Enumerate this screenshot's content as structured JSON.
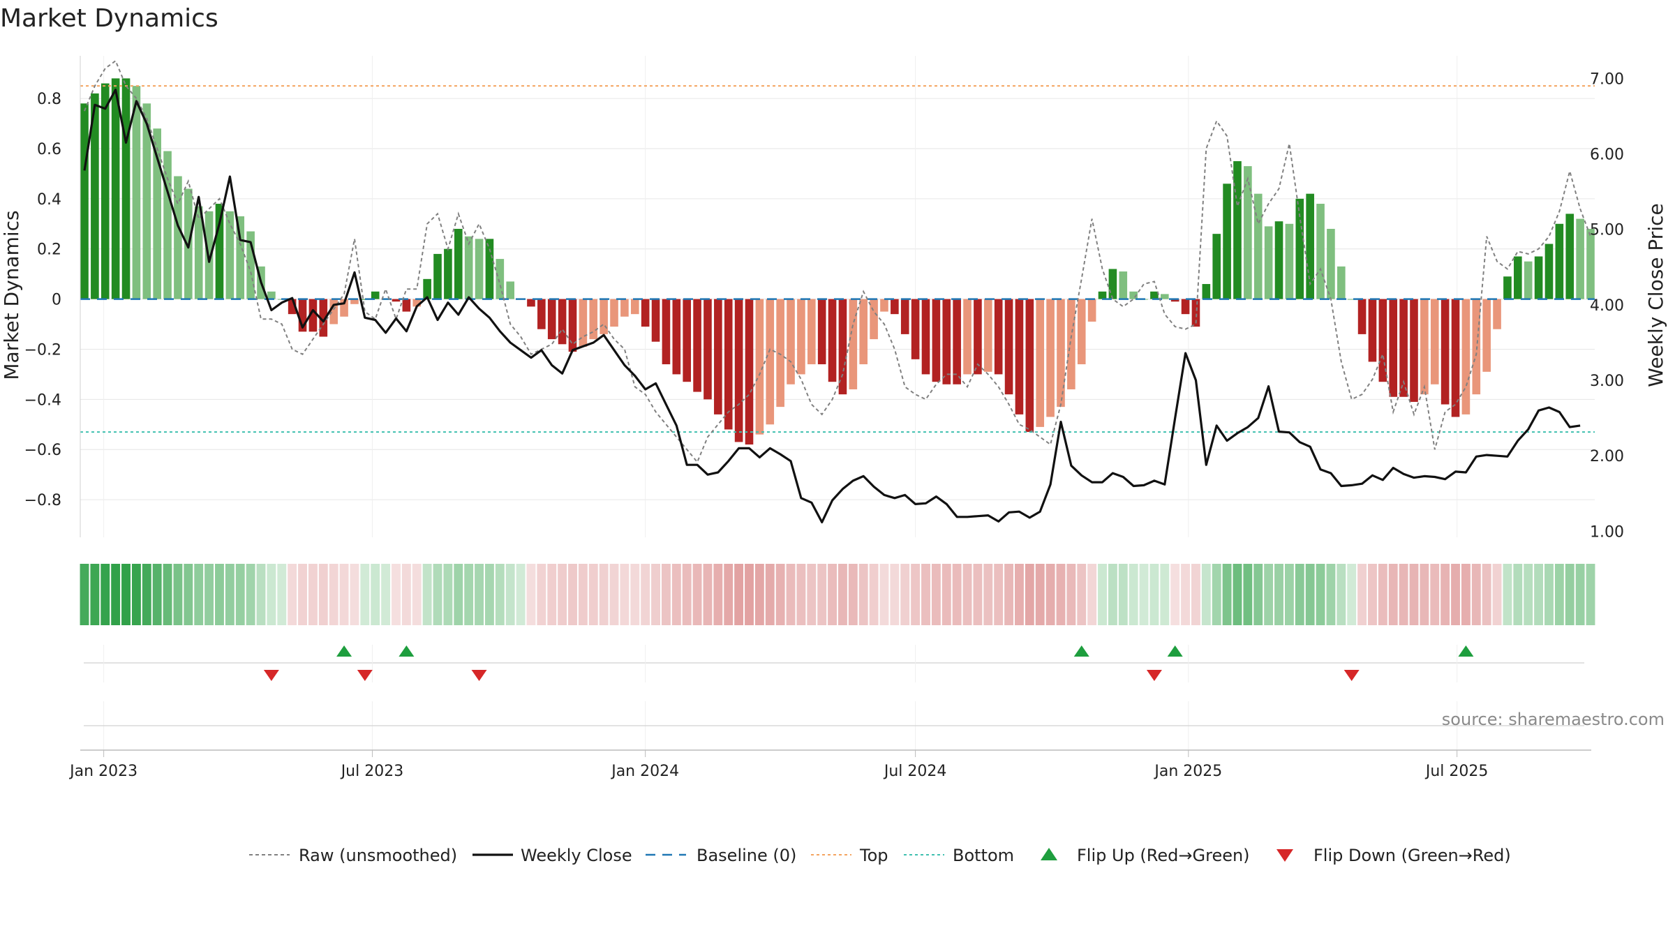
{
  "chart_data": {
    "type": "bar",
    "title": "Market Dynamics",
    "ylabel": "Market Dynamics",
    "y2label": "Weekly Close Price",
    "ylim": [
      -0.95,
      0.97
    ],
    "y2lim": [
      0.92,
      7.3
    ],
    "y_ticks": [
      0.8,
      0.6,
      0.4,
      0.2,
      0,
      -0.2,
      -0.4,
      -0.6,
      -0.8
    ],
    "y_tick_labels": [
      "0.8",
      "0.6",
      "0.4",
      "0.2",
      "0",
      "−0.2",
      "−0.4",
      "−0.6",
      "−0.8"
    ],
    "y2_ticks": [
      7,
      6,
      5,
      4,
      3,
      2,
      1
    ],
    "y2_tick_labels": [
      "7.00",
      "6.00",
      "5.00",
      "4.00",
      "3.00",
      "2.00",
      "1.00"
    ],
    "x_ticks": [
      {
        "date": "2023-01-01",
        "label": "Jan 2023"
      },
      {
        "date": "2023-07-01",
        "label": "Jul 2023"
      },
      {
        "date": "2024-01-01",
        "label": "Jan 2024"
      },
      {
        "date": "2024-07-01",
        "label": "Jul 2024"
      },
      {
        "date": "2025-01-01",
        "label": "Jan 2025"
      },
      {
        "date": "2025-07-01",
        "label": "Jul 2025"
      }
    ],
    "grid": true,
    "legend_position": "bottom",
    "top_level": 0.85,
    "bottom_level": -0.53,
    "baseline": 0,
    "colors": {
      "strong_green": "#228b22",
      "light_green": "#7fbf7f",
      "strong_red": "#b22222",
      "light_red": "#e9967a",
      "close_line": "#111111",
      "raw_line": "#808080",
      "baseline": "#1f77b4",
      "top": "#f4a460",
      "bottom": "#40c0b0",
      "flip_up": "#1e9e3e",
      "flip_down": "#d62728"
    },
    "weekly": {
      "start_date": "2022-12-19",
      "step_days": 7,
      "momentum": [
        0.78,
        0.82,
        0.86,
        0.88,
        0.88,
        0.85,
        0.78,
        0.68,
        0.59,
        0.49,
        0.44,
        0.37,
        0.35,
        0.38,
        0.35,
        0.33,
        0.27,
        0.13,
        0.03,
        0,
        -0.06,
        -0.13,
        -0.13,
        -0.15,
        -0.1,
        -0.07,
        -0.02,
        0,
        0.03,
        0,
        -0.01,
        -0.05,
        -0.03,
        0.08,
        0.18,
        0.2,
        0.28,
        0.25,
        0.24,
        0.24,
        0.16,
        0.07,
        0,
        -0.03,
        -0.12,
        -0.16,
        -0.18,
        -0.21,
        -0.19,
        -0.16,
        -0.14,
        -0.11,
        -0.07,
        -0.06,
        -0.11,
        -0.17,
        -0.26,
        -0.3,
        -0.33,
        -0.37,
        -0.4,
        -0.46,
        -0.52,
        -0.57,
        -0.58,
        -0.54,
        -0.5,
        -0.43,
        -0.34,
        -0.3,
        -0.26,
        -0.26,
        -0.33,
        -0.38,
        -0.36,
        -0.26,
        -0.16,
        -0.05,
        -0.06,
        -0.14,
        -0.24,
        -0.3,
        -0.33,
        -0.34,
        -0.34,
        -0.3,
        -0.3,
        -0.29,
        -0.3,
        -0.38,
        -0.46,
        -0.53,
        -0.51,
        -0.47,
        -0.43,
        -0.36,
        -0.26,
        -0.09,
        0.03,
        0.12,
        0.11,
        0.03,
        0,
        0.03,
        0.02,
        -0.01,
        -0.06,
        -0.11,
        0.06,
        0.26,
        0.46,
        0.55,
        0.53,
        0.42,
        0.29,
        0.31,
        0.3,
        0.4,
        0.42,
        0.38,
        0.28,
        0.13,
        0,
        -0.14,
        -0.25,
        -0.33,
        -0.39,
        -0.39,
        -0.41,
        -0.38,
        -0.34,
        -0.42,
        -0.47,
        -0.46,
        -0.38,
        -0.29,
        -0.12,
        0.09,
        0.17,
        0.15,
        0.17,
        0.22,
        0.3,
        0.34,
        0.32,
        0.28
      ],
      "close": [
        5.78,
        6.65,
        6.6,
        6.85,
        6.15,
        6.7,
        6.4,
        5.95,
        5.5,
        5.05,
        4.76,
        5.43,
        4.57,
        5.08,
        5.7,
        4.86,
        4.83,
        4.3,
        3.93,
        4.03,
        4.09,
        3.7,
        3.93,
        3.78,
        4.0,
        4.02,
        4.43,
        3.83,
        3.8,
        3.63,
        3.82,
        3.65,
        3.98,
        4.1,
        3.8,
        4.03,
        3.87,
        4.1,
        3.95,
        3.83,
        3.65,
        3.5,
        3.4,
        3.3,
        3.4,
        3.2,
        3.09,
        3.4,
        3.45,
        3.5,
        3.6,
        3.4,
        3.2,
        3.06,
        2.88,
        2.96,
        2.68,
        2.4,
        1.88,
        1.88,
        1.75,
        1.78,
        1.93,
        2.1,
        2.1,
        1.98,
        2.1,
        2.02,
        1.93,
        1.44,
        1.38,
        1.12,
        1.41,
        1.56,
        1.67,
        1.73,
        1.59,
        1.48,
        1.44,
        1.48,
        1.36,
        1.37,
        1.46,
        1.36,
        1.19,
        1.19,
        1.2,
        1.21,
        1.13,
        1.25,
        1.26,
        1.18,
        1.26,
        1.62,
        2.45,
        1.87,
        1.74,
        1.65,
        1.65,
        1.77,
        1.72,
        1.6,
        1.61,
        1.67,
        1.62,
        2.5,
        3.36,
        3.0,
        1.88,
        2.4,
        2.2,
        2.3,
        2.38,
        2.5,
        2.92,
        2.32,
        2.31,
        2.18,
        2.12,
        1.82,
        1.77,
        1.6,
        1.61,
        1.63,
        1.74,
        1.68,
        1.84,
        1.76,
        1.71,
        1.73,
        1.72,
        1.69,
        1.79,
        1.78,
        1.99,
        2.01,
        2.0,
        1.99,
        2.2,
        2.35,
        2.6,
        2.64,
        2.58,
        2.38,
        2.4
      ],
      "raw": [
        0.75,
        0.85,
        0.92,
        0.95,
        0.85,
        0.8,
        0.72,
        0.6,
        0.48,
        0.38,
        0.47,
        0.32,
        0.36,
        0.4,
        0.3,
        0.22,
        0.11,
        -0.08,
        -0.08,
        -0.1,
        -0.2,
        -0.22,
        -0.16,
        -0.1,
        -0.04,
        0.02,
        0.24,
        -0.05,
        -0.08,
        0.04,
        -0.08,
        0.04,
        0.04,
        0.3,
        0.34,
        0.2,
        0.34,
        0.22,
        0.3,
        0.2,
        0.06,
        -0.1,
        -0.15,
        -0.22,
        -0.2,
        -0.18,
        -0.12,
        -0.18,
        -0.15,
        -0.13,
        -0.1,
        -0.16,
        -0.2,
        -0.35,
        -0.38,
        -0.45,
        -0.5,
        -0.55,
        -0.6,
        -0.65,
        -0.55,
        -0.5,
        -0.45,
        -0.42,
        -0.38,
        -0.3,
        -0.2,
        -0.22,
        -0.25,
        -0.32,
        -0.42,
        -0.46,
        -0.4,
        -0.3,
        -0.1,
        0.03,
        -0.05,
        -0.1,
        -0.2,
        -0.35,
        -0.38,
        -0.4,
        -0.34,
        -0.3,
        -0.3,
        -0.35,
        -0.26,
        -0.3,
        -0.35,
        -0.42,
        -0.5,
        -0.52,
        -0.55,
        -0.58,
        -0.42,
        -0.15,
        0.08,
        0.32,
        0.12,
        0.0,
        -0.03,
        0.0,
        0.06,
        0.07,
        -0.06,
        -0.11,
        -0.12,
        -0.1,
        0.6,
        0.71,
        0.65,
        0.37,
        0.48,
        0.3,
        0.38,
        0.44,
        0.62,
        0.33,
        0.06,
        0.12,
        0.0,
        -0.25,
        -0.4,
        -0.38,
        -0.32,
        -0.22,
        -0.45,
        -0.33,
        -0.46,
        -0.35,
        -0.6,
        -0.45,
        -0.42,
        -0.35,
        -0.22,
        0.25,
        0.15,
        0.12,
        0.19,
        0.18,
        0.2,
        0.25,
        0.35,
        0.51,
        0.36,
        0.25
      ]
    },
    "regime_bar": {
      "description_colors": [
        "#2e8b57",
        "#f0c8c8"
      ]
    },
    "flips_up": [
      "2023-06-12",
      "2023-07-24",
      "2024-10-21",
      "2024-12-23",
      "2025-07-07"
    ],
    "flips_down": [
      "2023-04-24",
      "2023-06-26",
      "2023-09-11",
      "2024-12-09",
      "2025-04-21"
    ],
    "source": "source: sharemaestro.com",
    "legend": [
      {
        "label": "Raw (unsmoothed)",
        "style": "raw"
      },
      {
        "label": "Weekly Close",
        "style": "close"
      },
      {
        "label": "Baseline (0)",
        "style": "baseline"
      },
      {
        "label": "Top",
        "style": "top"
      },
      {
        "label": "Bottom",
        "style": "bottom"
      },
      {
        "label": "Flip Up (Red→Green)",
        "style": "flip_up"
      },
      {
        "label": "Flip Down (Green→Red)",
        "style": "flip_down"
      }
    ]
  }
}
